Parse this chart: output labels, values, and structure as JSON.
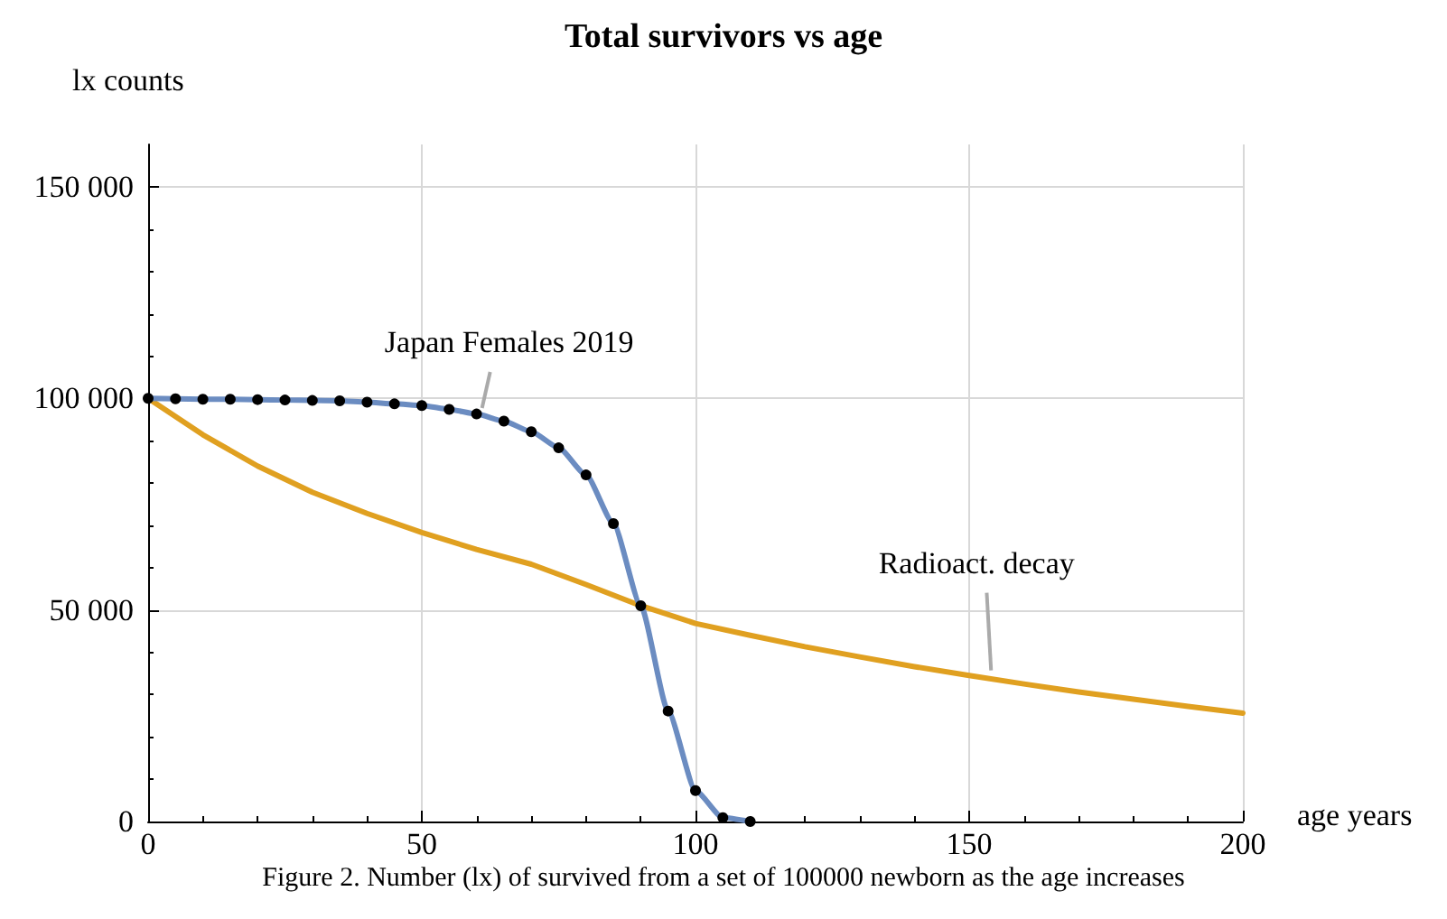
{
  "chart_data": {
    "type": "line",
    "title": "Total survivors vs age",
    "xlabel": "age years",
    "ylabel": "lx counts",
    "xlim": [
      0,
      200
    ],
    "xticks": [
      0,
      50,
      100,
      150,
      200
    ],
    "ylim": [
      0,
      160000
    ],
    "yticks": [
      {
        "value": 0,
        "label": "0"
      },
      {
        "value": 50000,
        "label": "50 000"
      },
      {
        "value": 100000,
        "label": "100 000"
      },
      {
        "value": 150000,
        "label": "150 000"
      }
    ],
    "grid": true,
    "series": [
      {
        "color": "#6b8cc1",
        "marker": "circle",
        "x": [
          0,
          5,
          10,
          15,
          20,
          25,
          30,
          35,
          40,
          45,
          50,
          55,
          60,
          65,
          70,
          75,
          80,
          85,
          90,
          95,
          100,
          105,
          110
        ],
        "values": [
          100000,
          99900,
          99800,
          99800,
          99700,
          99600,
          99500,
          99400,
          99100,
          98700,
          98300,
          97400,
          96300,
          94600,
          92100,
          88300,
          81900,
          70400,
          51000,
          26100,
          7300,
          900,
          0
        ]
      },
      {
        "color": "#e0a020",
        "marker": "none",
        "x": [
          0,
          10,
          20,
          30,
          40,
          50,
          60,
          70,
          80,
          90,
          100,
          110,
          120,
          130,
          140,
          150,
          160,
          170,
          180,
          190,
          200
        ],
        "values": [
          100000,
          91400,
          84000,
          77800,
          72800,
          68300,
          64300,
          60800,
          56000,
          51000,
          46800,
          44000,
          41300,
          38900,
          36600,
          34500,
          32500,
          30600,
          28900,
          27200,
          25600
        ]
      }
    ],
    "annotations": [
      {
        "text": "Japan Females 2019",
        "x": 61,
        "y": 96000
      },
      {
        "text": "Radioact. decay",
        "x": 154,
        "y": 34000
      },
      "Figure 2. Number (lx) of survived from a set of 100000 newborn as the age increases"
    ]
  }
}
